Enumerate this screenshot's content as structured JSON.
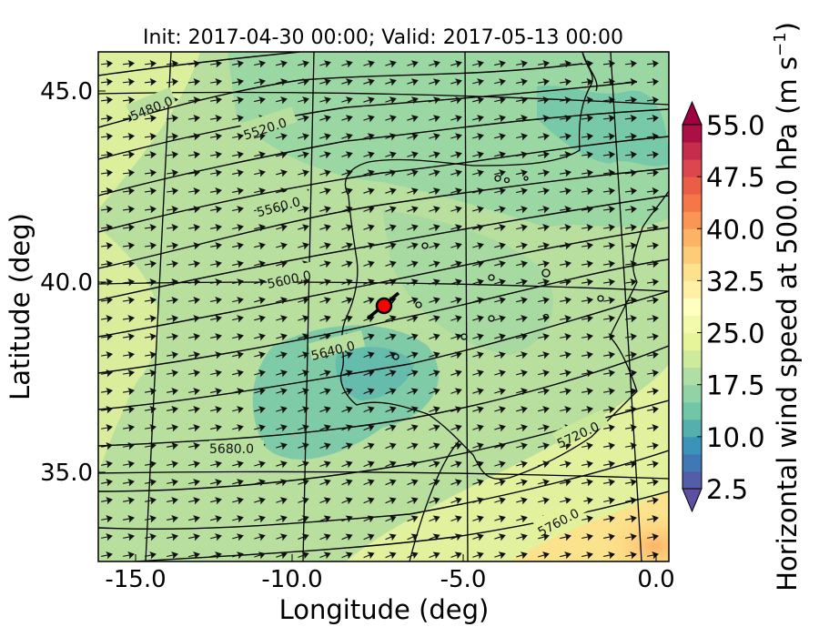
{
  "chart_data": {
    "type": "heatmap",
    "title": "Init: 2017-04-30 00:00; Valid: 2017-05-13 00:00",
    "xlabel": "Longitude (deg)",
    "ylabel": "Latitude (deg)",
    "xlim": [
      -16,
      0.3
    ],
    "ylim": [
      32.5,
      46.2
    ],
    "x_ticks": [
      "-15.0",
      "-10.0",
      "-5.0",
      "0.0"
    ],
    "y_ticks": [
      "35.0",
      "40.0",
      "45.0"
    ],
    "grid": true,
    "colorbar": {
      "label": "Horizontal wind speed at 500.0 hPa (m s$^{-1}$)",
      "label_text": "Horizontal wind speed at 500.0 hPa (m s",
      "label_sup": "−1",
      "label_close": ")",
      "min": 2.5,
      "max": 55.0,
      "step": 2.5,
      "extend": "both",
      "ticks": [
        "2.5",
        "10.0",
        "17.5",
        "25.0",
        "32.5",
        "40.0",
        "47.5",
        "55.0"
      ],
      "colormap": "Spectral_r"
    },
    "height_contours": {
      "units": "m",
      "levels": [
        5480,
        5520,
        5560,
        5600,
        5640,
        5680,
        5720,
        5760
      ],
      "labels": [
        "5480.0",
        "5520.0",
        "5560.0",
        "5600.0",
        "5640.0",
        "5680.0",
        "5720.0",
        "5760.0"
      ]
    },
    "marker": {
      "lon": -7.7,
      "lat": 39.3,
      "color": "#ff0000"
    },
    "wind_arrows": {
      "direction": "toward east-northeast",
      "color": "#000000"
    }
  }
}
